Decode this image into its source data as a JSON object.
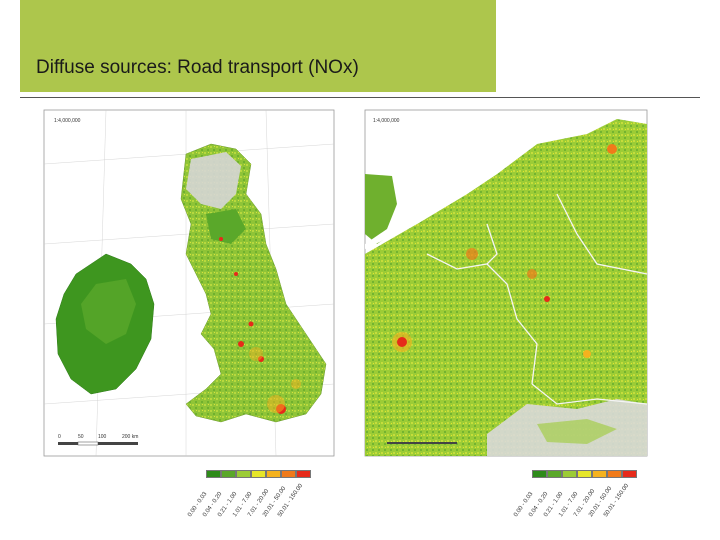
{
  "slide": {
    "title": "Diffuse sources: Road transport (NOx)"
  },
  "maps": [
    {
      "name": "uk-ireland",
      "scale_text": "1:4,000,000",
      "scalebar_ticks": [
        "0",
        "50",
        "100",
        "200 km"
      ],
      "legend_labels": [
        "0.00 - 0.03",
        "0.04 - 0.20",
        "0.21 - 1.00",
        "1.01 - 7.00",
        "7.01 - 20.00",
        "20.01 - 50.00",
        "50.01 - 150.00"
      ]
    },
    {
      "name": "benelux-germany",
      "scale_text": "1:4,000,000",
      "legend_labels": [
        "0.00 - 0.03",
        "0.04 - 0.20",
        "0.21 - 1.00",
        "1.01 - 7.00",
        "7.01 - 20.00",
        "20.01 - 50.00",
        "50.01 - 150.00"
      ]
    }
  ],
  "legend_colors": [
    "#2e8b1a",
    "#5aa82a",
    "#9ccc36",
    "#e6e62a",
    "#f5b21e",
    "#f07a1a",
    "#e62a1a"
  ],
  "colors": {
    "header_bg": "#adc64c",
    "sea": "#ffffff",
    "land_low": "#5aa82a",
    "land_mid": "#9ccc36",
    "land_hi": "#e6e62a",
    "urban": "#e62a1a",
    "no_data": "#d9d9d9"
  }
}
